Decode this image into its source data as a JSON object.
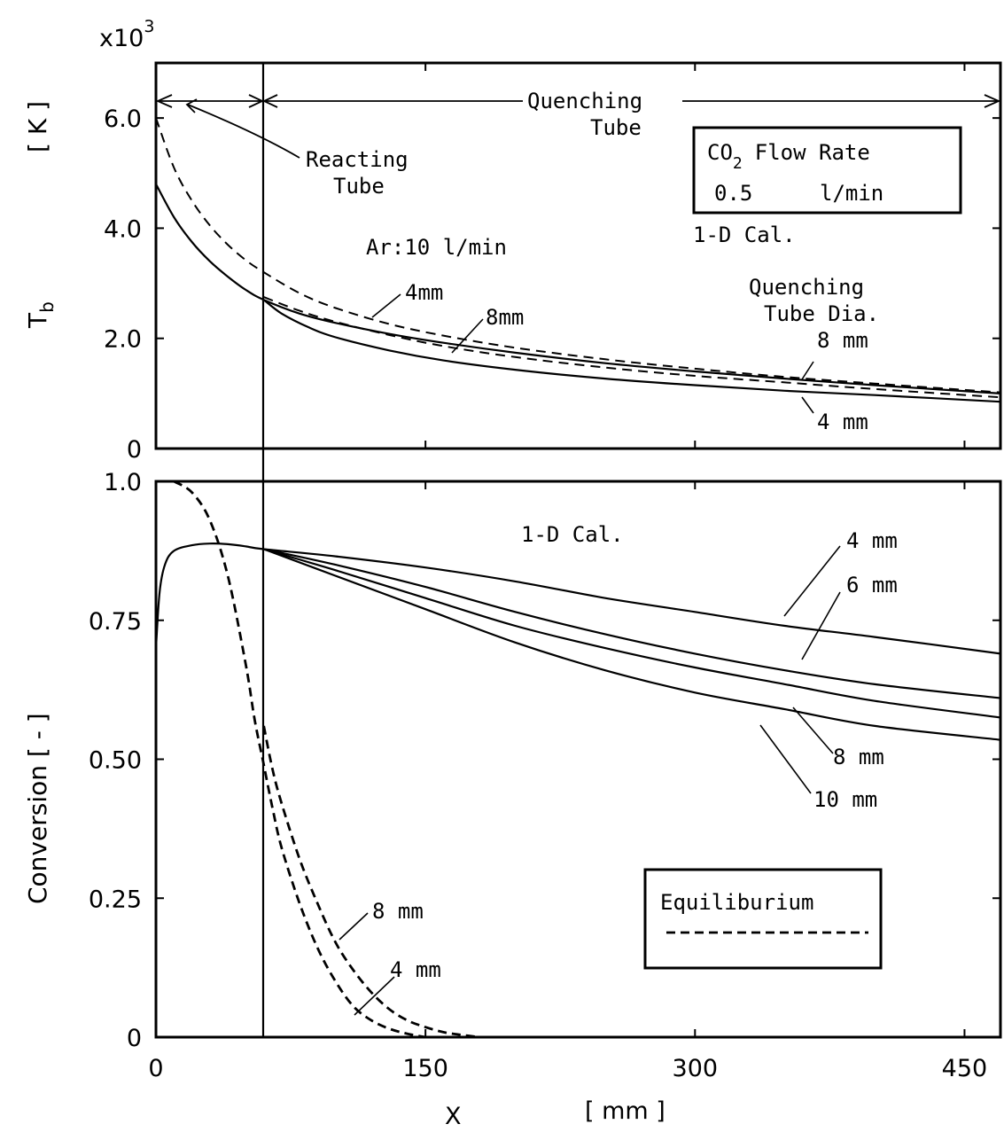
{
  "chart_data": [
    {
      "type": "line",
      "ylabel": "T",
      "ylabel_sub": "b",
      "yunit": "[ K ]",
      "yscale_prefix": "x10",
      "yscale_exp": "3",
      "xlim": [
        0,
        470
      ],
      "ylim": [
        0,
        7.0
      ],
      "yticks": [
        0,
        2.0,
        4.0,
        6.0
      ],
      "ytick_labels": [
        "0",
        "2.0",
        "4.0",
        "6.0"
      ],
      "xticks": [
        0,
        150,
        300,
        450
      ],
      "xtick_labels": [],
      "annotations": {
        "reacting": [
          "Reacting",
          "Tube"
        ],
        "quenching": [
          "Quenching",
          "Tube"
        ],
        "ar_flow": "Ar:10 l/min",
        "cal": "1-D Cal.",
        "tube_dia": [
          "Quenching",
          "Tube Dia."
        ],
        "solid_8": "8 mm",
        "solid_4": "4 mm",
        "dash_4": "4mm",
        "dash_8": "8mm"
      },
      "legend_box": {
        "line1_a": "CO",
        "line1_sub": "2",
        "line1_b": "Flow Rate",
        "line2_a": "0.5",
        "line2_b": "l/min"
      },
      "series": [
        {
          "name": "8 mm",
          "style": "solid",
          "x": [
            0,
            10,
            20,
            30,
            40,
            50,
            60,
            80,
            100,
            130,
            160,
            200,
            250,
            300,
            350,
            400,
            470
          ],
          "y": [
            4.8,
            4.2,
            3.75,
            3.4,
            3.12,
            2.88,
            2.7,
            2.45,
            2.28,
            2.08,
            1.92,
            1.74,
            1.55,
            1.4,
            1.27,
            1.15,
            1.0
          ]
        },
        {
          "name": "4 mm",
          "style": "solid",
          "x": [
            60,
            70,
            85,
            100,
            130,
            160,
            200,
            250,
            300,
            350,
            400,
            470
          ],
          "y": [
            2.7,
            2.45,
            2.2,
            2.02,
            1.78,
            1.6,
            1.43,
            1.27,
            1.15,
            1.05,
            0.97,
            0.85
          ]
        },
        {
          "name": "4mm",
          "style": "dashed",
          "x": [
            0,
            10,
            20,
            30,
            40,
            50,
            60,
            80,
            100,
            130,
            160,
            200,
            250,
            300,
            350,
            400,
            470
          ],
          "y": [
            6.0,
            5.1,
            4.5,
            4.05,
            3.7,
            3.42,
            3.2,
            2.82,
            2.55,
            2.26,
            2.05,
            1.83,
            1.62,
            1.45,
            1.3,
            1.18,
            1.02
          ]
        },
        {
          "name": "8mm",
          "style": "dashed",
          "x": [
            60,
            80,
            100,
            130,
            160,
            200,
            250,
            300,
            350,
            400,
            470
          ],
          "y": [
            2.75,
            2.5,
            2.3,
            2.06,
            1.86,
            1.66,
            1.47,
            1.32,
            1.2,
            1.08,
            0.93
          ]
        }
      ]
    },
    {
      "type": "line",
      "ylabel": "Conversion [ - ]",
      "xlabel": "X",
      "xunit": "[ mm ]",
      "xlim": [
        0,
        470
      ],
      "ylim": [
        0,
        1.0
      ],
      "yticks": [
        0,
        0.25,
        0.5,
        0.75,
        1.0
      ],
      "ytick_labels": [
        "0",
        "0.25",
        "0.50",
        "0.75",
        "1.0"
      ],
      "xticks": [
        0,
        150,
        300,
        450
      ],
      "xtick_labels": [
        "0",
        "150",
        "300",
        "450"
      ],
      "annotations": {
        "cal": "1-D Cal.",
        "s4": "4 mm",
        "s6": "6 mm",
        "s8": "8 mm",
        "s10": "10 mm",
        "e8": "8 mm",
        "e4": "4 mm"
      },
      "legend_box": {
        "label": "Equiliburium"
      },
      "series": [
        {
          "name": "4 mm",
          "style": "solid",
          "x": [
            0,
            2,
            5,
            10,
            20,
            30,
            40,
            50,
            60,
            100,
            150,
            200,
            250,
            300,
            350,
            400,
            470
          ],
          "y": [
            0.7,
            0.8,
            0.85,
            0.875,
            0.885,
            0.888,
            0.887,
            0.883,
            0.878,
            0.865,
            0.845,
            0.82,
            0.79,
            0.765,
            0.74,
            0.72,
            0.69
          ]
        },
        {
          "name": "6 mm",
          "style": "solid",
          "x": [
            60,
            100,
            150,
            200,
            250,
            300,
            350,
            400,
            470
          ],
          "y": [
            0.878,
            0.85,
            0.81,
            0.765,
            0.725,
            0.69,
            0.66,
            0.635,
            0.61
          ]
        },
        {
          "name": "8 mm",
          "style": "solid",
          "x": [
            60,
            100,
            150,
            200,
            250,
            300,
            350,
            400,
            470
          ],
          "y": [
            0.878,
            0.84,
            0.79,
            0.74,
            0.7,
            0.665,
            0.635,
            0.605,
            0.575
          ]
        },
        {
          "name": "10 mm",
          "style": "solid",
          "x": [
            60,
            100,
            150,
            200,
            250,
            300,
            350,
            400,
            470
          ],
          "y": [
            0.878,
            0.83,
            0.77,
            0.71,
            0.66,
            0.62,
            0.59,
            0.56,
            0.535
          ]
        },
        {
          "name": "Equiliburium 4 mm",
          "style": "dashed",
          "x": [
            10,
            20,
            30,
            40,
            50,
            55,
            60,
            65,
            70,
            80,
            90,
            100,
            110,
            120,
            130,
            140,
            150
          ],
          "y": [
            1.0,
            0.98,
            0.93,
            0.83,
            0.67,
            0.57,
            0.49,
            0.41,
            0.34,
            0.24,
            0.16,
            0.1,
            0.055,
            0.03,
            0.015,
            0.006,
            0.0
          ]
        },
        {
          "name": "Equiliburium 8 mm",
          "style": "dashed",
          "x": [
            60,
            65,
            70,
            80,
            90,
            100,
            110,
            120,
            130,
            140,
            150,
            160,
            170,
            180
          ],
          "y": [
            0.56,
            0.48,
            0.42,
            0.32,
            0.24,
            0.17,
            0.12,
            0.08,
            0.05,
            0.03,
            0.018,
            0.009,
            0.004,
            0.0
          ]
        }
      ]
    }
  ]
}
